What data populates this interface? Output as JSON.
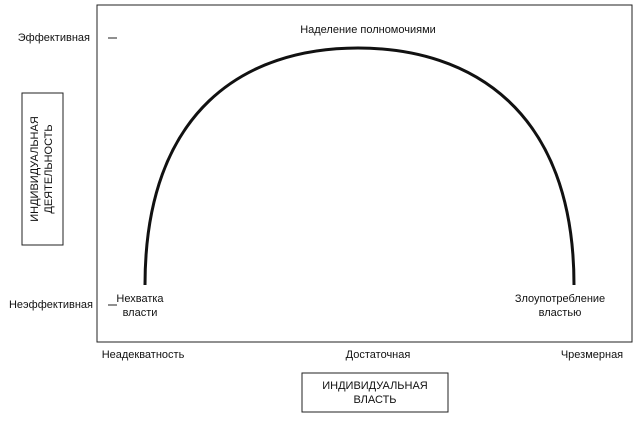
{
  "y_axis": {
    "title": [
      "ИНДИВИДУАЛЬНАЯ",
      "ДЕЯТЕЛЬНОСТЬ"
    ],
    "levels": [
      "Эффективная",
      "Неэффективная"
    ]
  },
  "x_axis": {
    "title": [
      "ИНДИВИДУАЛЬНАЯ",
      "ВЛАСТЬ"
    ],
    "levels": [
      "Неадекватность",
      "Достаточная",
      "Чрезмерная"
    ]
  },
  "curve": {
    "label": "Наделение полномочиями",
    "left_label": [
      "Нехватка",
      "власти"
    ],
    "right_label": [
      "Злоупотребление",
      "властью"
    ]
  }
}
